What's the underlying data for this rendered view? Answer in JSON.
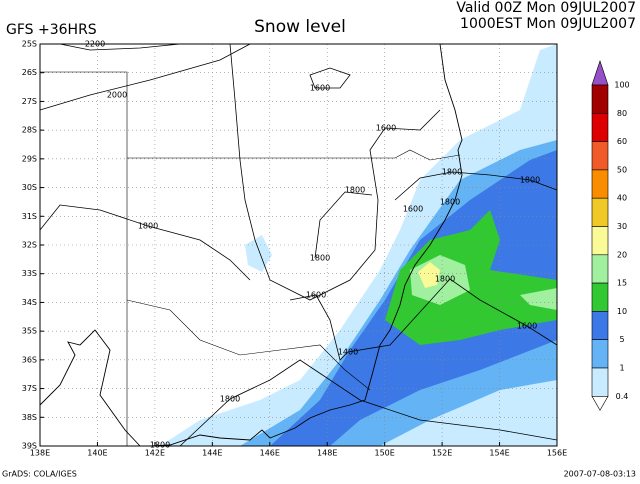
{
  "header": {
    "model": "GFS +36HRS",
    "title": "Snow level",
    "valid_line1": "Valid 00Z Mon 09JUL2007",
    "valid_line2": "1000EST Mon 09JUL2007"
  },
  "map": {
    "lat_labels": [
      "25S",
      "26S",
      "27S",
      "28S",
      "29S",
      "30S",
      "31S",
      "32S",
      "33S",
      "34S",
      "35S",
      "36S",
      "37S",
      "38S",
      "39S"
    ],
    "lon_labels": [
      "138E",
      "140E",
      "142E",
      "144E",
      "146E",
      "148E",
      "150E",
      "152E",
      "154E",
      "156E"
    ],
    "contour_labels": [
      "2200",
      "2000",
      "1600",
      "1600",
      "1800",
      "1600",
      "1800",
      "1800",
      "1800",
      "1800",
      "1800",
      "1800",
      "1600",
      "1600",
      "1400",
      "1800",
      "1800"
    ]
  },
  "colorbar": {
    "labels": [
      100,
      80,
      60,
      50,
      40,
      30,
      20,
      15,
      10,
      5,
      1,
      0.4
    ],
    "colors": [
      "#a00000",
      "#dc0000",
      "#f05a28",
      "#fa8c00",
      "#f0c828",
      "#fafa96",
      "#a0f0a0",
      "#32c832",
      "#3c78e6",
      "#64b4f5",
      "#c8ebff"
    ],
    "over_color": "#9650c8",
    "under_color": "#ffffff"
  },
  "footer": {
    "credit": "GrADS: COLA/IGES",
    "timestamp": "2007-07-08-03:13"
  }
}
